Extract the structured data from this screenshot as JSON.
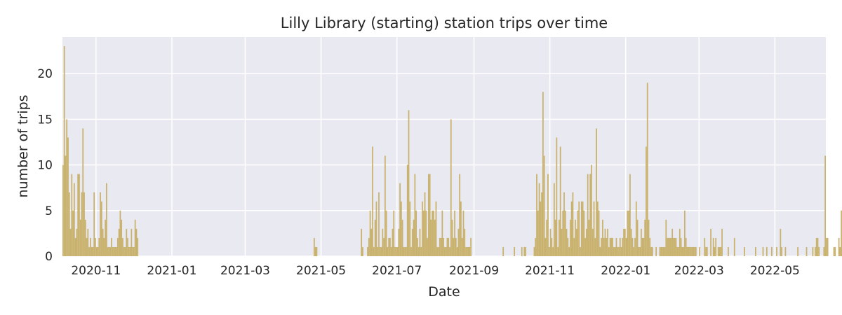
{
  "chart_data": {
    "type": "bar",
    "title": "Lilly Library (starting) station trips over time",
    "xlabel": "Date",
    "ylabel": "number of trips",
    "xlim": [
      "2020-10-05",
      "2022-06-11"
    ],
    "ylim": [
      0,
      24
    ],
    "x_ticks": [
      "2020-11-01",
      "2021-01-01",
      "2021-03-01",
      "2021-05-01",
      "2021-07-01",
      "2021-09-01",
      "2021-11-01",
      "2022-01-01",
      "2022-03-01",
      "2022-05-01"
    ],
    "x_tick_labels": [
      "2020-11",
      "2021-01",
      "2021-03",
      "2021-05",
      "2021-07",
      "2021-09",
      "2021-11",
      "2022-01",
      "2022-03",
      "2022-05"
    ],
    "y_ticks": [
      0,
      5,
      10,
      15,
      20
    ],
    "y_tick_labels": [
      "0",
      "5",
      "10",
      "15",
      "20"
    ],
    "grid": true,
    "bar_color": "#c9b26d",
    "background_color": "#e9e9f1",
    "grid_color": "#ffffff",
    "series": [
      {
        "start_date": "2020-10-05",
        "values": [
          10,
          23,
          11,
          15,
          13,
          7,
          3,
          9,
          5,
          8,
          2,
          3,
          9,
          9,
          4,
          7,
          14,
          7,
          4,
          2,
          3,
          1,
          2,
          1,
          1,
          7,
          2,
          1,
          1,
          2,
          7,
          6,
          3,
          2,
          4,
          8,
          1,
          1,
          1,
          2,
          1,
          1,
          1,
          1,
          2,
          3,
          5,
          4,
          2,
          1,
          1,
          3,
          2,
          1,
          1,
          3,
          1,
          1,
          4,
          3,
          2,
          0,
          0,
          0,
          0,
          0,
          0,
          0,
          0,
          0,
          0,
          0,
          0,
          0,
          0,
          0,
          0,
          0,
          0,
          0,
          0,
          0,
          0,
          0,
          0,
          0,
          0,
          0,
          0,
          0,
          0,
          0,
          0,
          0,
          0,
          0,
          0,
          0,
          0,
          0,
          0,
          0,
          0,
          0,
          0,
          0,
          0,
          0,
          0,
          0,
          0,
          0,
          0,
          0,
          0,
          0,
          0,
          0,
          0,
          0,
          0,
          0,
          0,
          0,
          0,
          0,
          0,
          0,
          0,
          0,
          0,
          0,
          0,
          0,
          0,
          0,
          0,
          0,
          0,
          0,
          0,
          0,
          0,
          0,
          0,
          0,
          0,
          0,
          0,
          0,
          0,
          0,
          0,
          0,
          0,
          0,
          0,
          0,
          0,
          0,
          0,
          0,
          0,
          0,
          0,
          0,
          0,
          0,
          0,
          0,
          0,
          0,
          0,
          0,
          0,
          0,
          0,
          0,
          0,
          0,
          0,
          0,
          0,
          0,
          0,
          0,
          0,
          0,
          0,
          0,
          0,
          0,
          0,
          0,
          0,
          0,
          0,
          0,
          0,
          0,
          0,
          0,
          2,
          1,
          1,
          0,
          0,
          0,
          0,
          0,
          0,
          0,
          0,
          0,
          0,
          0,
          0,
          0,
          0,
          0,
          0,
          0,
          0,
          0,
          0,
          0,
          0,
          0,
          0,
          0,
          0,
          0,
          0,
          0,
          0,
          0,
          0,
          0,
          0,
          0,
          3,
          1,
          0,
          0,
          0,
          1,
          2,
          5,
          3,
          12,
          1,
          4,
          6,
          1,
          7,
          1,
          1,
          3,
          2,
          11,
          5,
          1,
          2,
          2,
          1,
          3,
          5,
          1,
          1,
          1,
          3,
          8,
          6,
          4,
          1,
          1,
          1,
          10,
          16,
          6,
          1,
          3,
          4,
          9,
          5,
          2,
          1,
          3,
          1,
          6,
          5,
          7,
          5,
          2,
          9,
          9,
          4,
          5,
          5,
          4,
          6,
          1,
          1,
          2,
          2,
          5,
          2,
          1,
          1,
          2,
          2,
          1,
          15,
          4,
          2,
          5,
          2,
          1,
          3,
          9,
          6,
          2,
          5,
          3,
          1,
          1,
          1,
          1,
          2,
          0,
          0,
          0,
          0,
          0,
          0,
          0,
          0,
          0,
          0,
          0,
          0,
          0,
          0,
          0,
          0,
          0,
          0,
          0,
          0,
          0,
          0,
          0,
          0,
          0,
          1,
          0,
          0,
          0,
          0,
          0,
          0,
          0,
          0,
          1,
          0,
          0,
          0,
          0,
          0,
          1,
          0,
          1,
          1,
          0,
          0,
          0,
          0,
          0,
          0,
          1,
          2,
          9,
          5,
          8,
          6,
          7,
          18,
          11,
          2,
          4,
          9,
          1,
          3,
          2,
          1,
          8,
          4,
          13,
          1,
          4,
          12,
          3,
          5,
          7,
          5,
          3,
          2,
          1,
          4,
          6,
          7,
          2,
          4,
          3,
          5,
          6,
          1,
          6,
          6,
          5,
          2,
          3,
          9,
          4,
          9,
          10,
          3,
          6,
          2,
          14,
          6,
          5,
          1,
          2,
          4,
          2,
          3,
          2,
          3,
          1,
          2,
          2,
          2,
          1,
          1,
          2,
          1,
          1,
          2,
          1,
          2,
          3,
          3,
          2,
          5,
          5,
          9,
          3,
          2,
          1,
          2,
          6,
          4,
          1,
          1,
          3,
          2,
          2,
          4,
          12,
          19,
          4,
          2,
          1,
          1,
          0,
          0,
          1,
          0,
          0,
          1,
          1,
          1,
          1,
          1,
          4,
          2,
          2,
          2,
          2,
          3,
          2,
          2,
          2,
          1,
          1,
          3,
          2,
          1,
          1,
          5,
          2,
          1,
          1,
          1,
          1,
          1,
          1,
          1,
          1,
          0,
          0,
          1,
          0,
          0,
          0,
          2,
          1,
          1,
          0,
          0,
          3,
          0,
          2,
          1,
          2,
          0,
          1,
          1,
          1,
          3,
          0,
          0,
          0,
          0,
          1,
          0,
          0,
          0,
          0,
          2,
          0,
          0,
          0,
          0,
          0,
          0,
          0,
          1,
          0,
          0,
          0,
          0,
          0,
          0,
          0,
          0,
          1,
          0,
          0,
          0,
          0,
          0,
          1,
          0,
          0,
          1,
          0,
          0,
          0,
          1,
          0,
          0,
          0,
          1,
          0,
          0,
          3,
          1,
          0,
          0,
          1,
          0,
          0,
          0,
          0,
          0,
          0,
          0,
          0,
          0,
          1,
          0,
          0,
          0,
          0,
          0,
          0,
          1,
          0,
          0,
          0,
          0,
          1,
          0,
          1,
          2,
          2,
          1,
          0,
          0,
          0,
          1,
          11,
          2,
          2,
          0,
          0,
          0,
          0,
          1,
          1,
          0,
          0,
          2,
          1,
          5,
          2,
          1,
          1,
          1,
          1,
          1,
          1,
          3,
          2,
          1,
          5,
          4,
          2,
          2,
          1,
          1,
          1,
          1,
          1,
          1,
          4,
          3,
          1,
          1,
          1,
          2,
          2,
          1,
          1,
          3,
          2,
          2,
          1,
          1,
          1,
          1,
          1,
          2,
          3,
          1,
          1,
          2,
          1,
          4,
          2,
          1,
          1,
          1,
          1,
          2,
          1,
          2,
          3,
          7,
          4,
          2,
          1,
          1,
          1,
          2,
          1,
          2,
          1,
          5,
          1,
          1,
          2,
          4,
          2,
          1,
          1,
          7,
          4,
          1,
          2,
          1,
          2,
          1,
          1,
          4,
          3,
          1,
          1,
          3,
          1,
          2,
          3,
          4,
          5,
          2,
          1,
          1,
          4,
          5,
          5,
          1,
          3,
          4,
          2,
          1,
          2,
          1,
          4,
          4,
          6,
          5,
          1,
          2,
          3,
          5,
          5,
          2,
          1
        ]
      }
    ]
  }
}
